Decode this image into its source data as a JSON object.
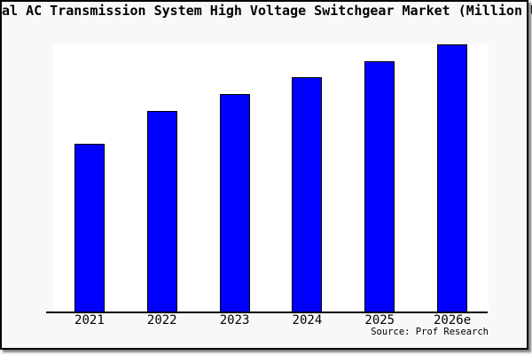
{
  "title": "Global AC Transmission System High Voltage Switchgear Market (Million USD)",
  "source": "Source: Prof Research",
  "colors": {
    "bar_fill": "#0000ff",
    "bar_border": "#000000",
    "plot_background": "#ffffff",
    "canvas_background": "#f8f8f8",
    "frame_border": "#000000",
    "axis_line": "#000000",
    "text": "#000000"
  },
  "chart_data": {
    "type": "bar",
    "title": "Global AC Transmission System High Voltage Switchgear Market (Million USD)",
    "categories": [
      "2021",
      "2022",
      "2023",
      "2024",
      "2025",
      "2026e"
    ],
    "values_relative": [
      0.628,
      0.751,
      0.814,
      0.877,
      0.937,
      1.0
    ],
    "xlabel": "",
    "ylabel": "",
    "value_axis_labels": "none shown (no y-axis ticks, no gridlines, no data labels)",
    "grid": false,
    "legend": "none",
    "source": "Source: Prof Research"
  }
}
